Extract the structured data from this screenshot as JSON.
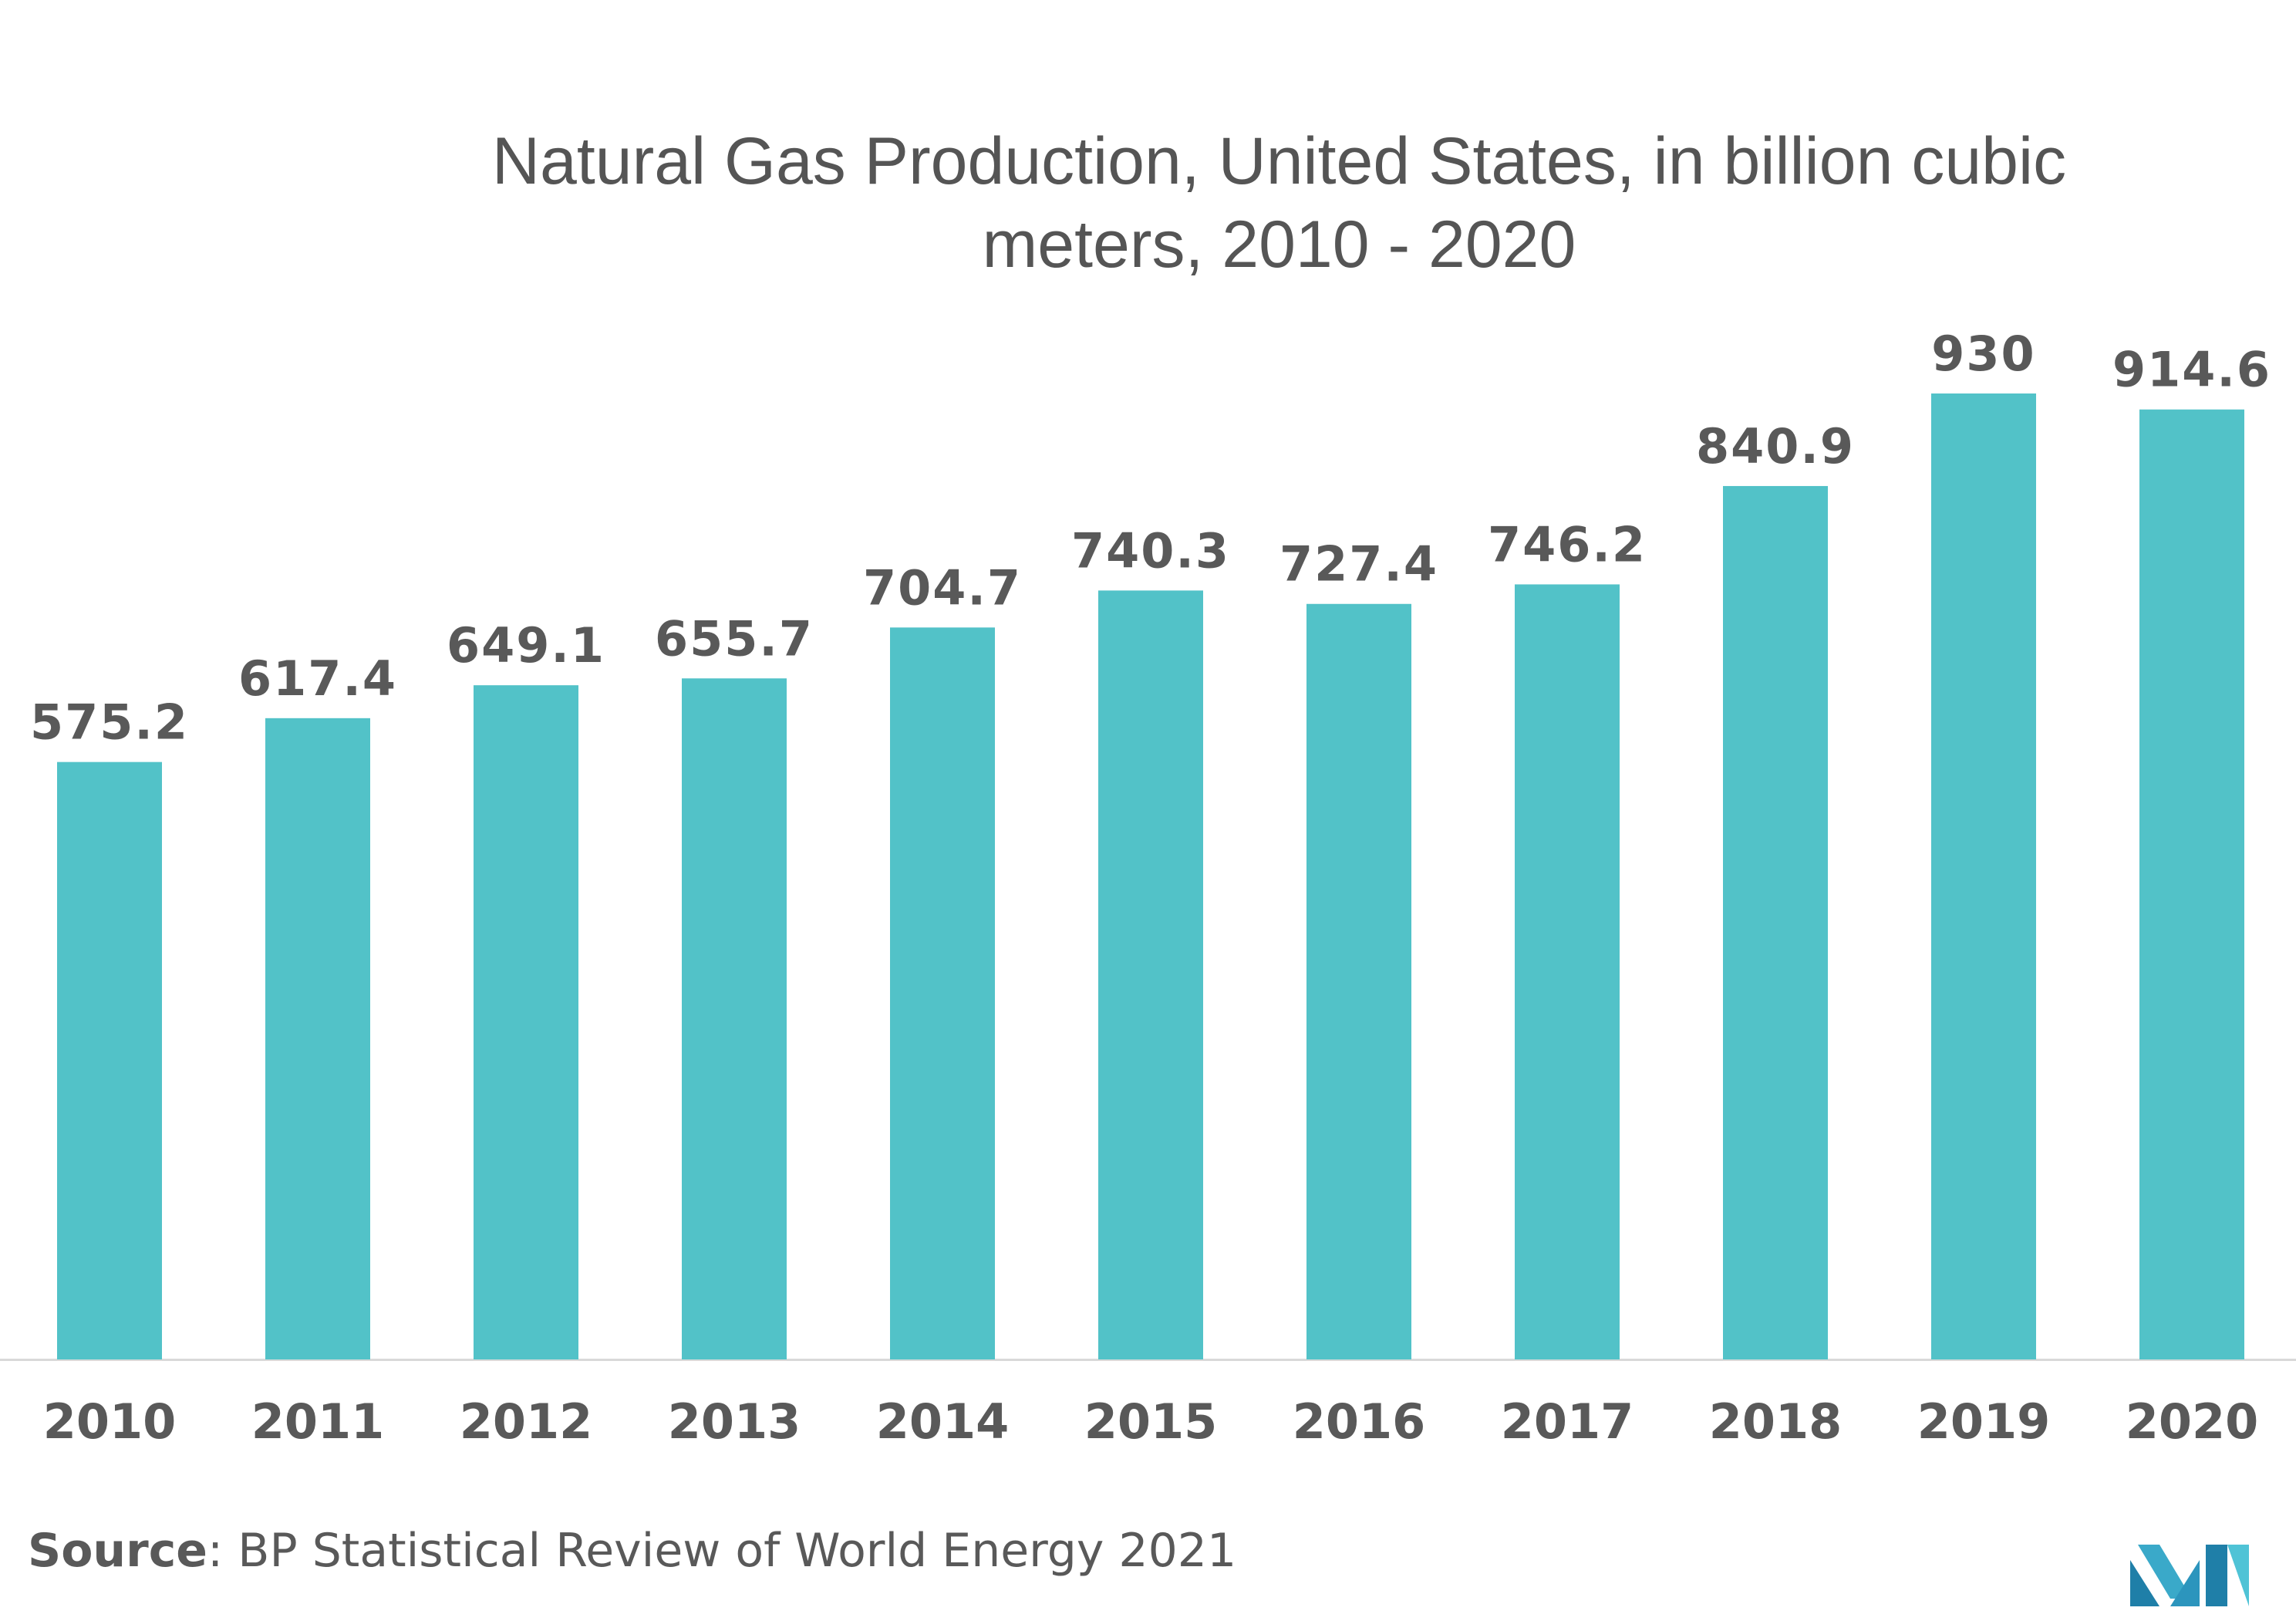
{
  "title": {
    "line1": "Natural Gas Production, United States, in billion cubic",
    "line2": "meters, 2010 - 2020"
  },
  "source": {
    "label": "Source",
    "text": ": BP Statistical Review of World Energy 2021"
  },
  "colors": {
    "bar": "#52C2C8",
    "label_text": "#595959",
    "axis_line": "#D9D9D9"
  },
  "logo": {
    "icon": "mordor-intelligence-logo"
  },
  "chart_data": {
    "type": "bar",
    "title": "Natural Gas Production, United States, in billion cubic meters, 2010 - 2020",
    "xlabel": "",
    "ylabel": "",
    "categories": [
      "2010",
      "2011",
      "2012",
      "2013",
      "2014",
      "2015",
      "2016",
      "2017",
      "2018",
      "2019",
      "2020"
    ],
    "values": [
      575.2,
      617.4,
      649.1,
      655.7,
      704.7,
      740.3,
      727.4,
      746.2,
      840.9,
      930,
      914.6
    ],
    "value_labels": [
      "575.2",
      "617.4",
      "649.1",
      "655.7",
      "704.7",
      "740.3",
      "727.4",
      "746.2",
      "840.9",
      "930",
      "914.6"
    ],
    "ylim": [
      0,
      930
    ],
    "grid": false,
    "legend": "none"
  }
}
